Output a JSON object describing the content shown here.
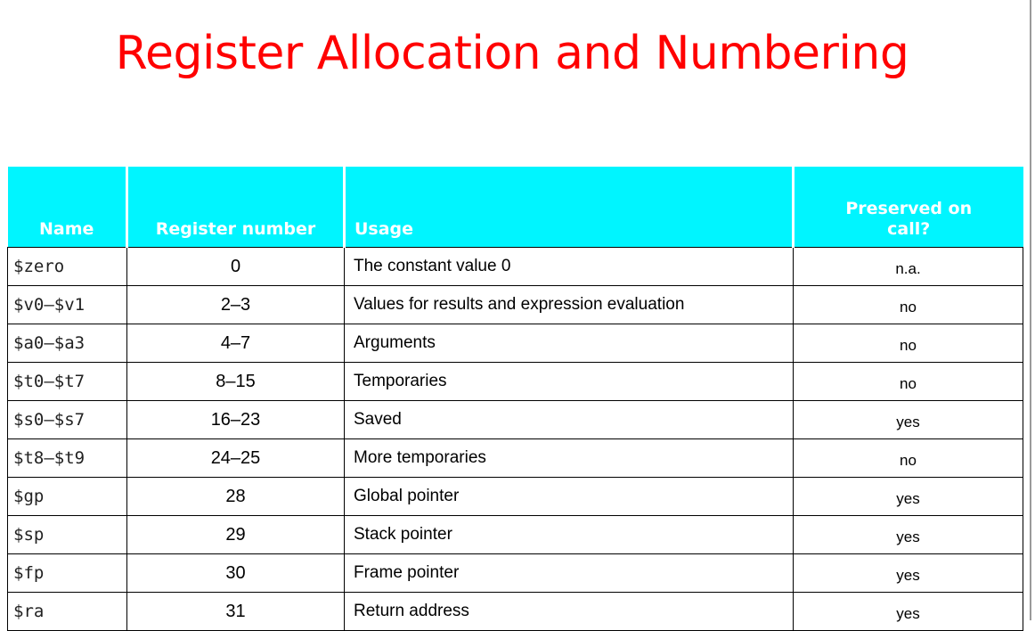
{
  "slide": {
    "title": "Register Allocation and Numbering"
  },
  "table": {
    "headers": {
      "name": "Name",
      "number": "Register number",
      "usage": "Usage",
      "preserved_line1": "Preserved on",
      "preserved_line2": "call?"
    },
    "rows": [
      {
        "name": "$zero",
        "number": "0",
        "usage": "The constant value 0",
        "preserved": "n.a."
      },
      {
        "name": "$v0–$v1",
        "number": "2–3",
        "usage": "Values for results and expression evaluation",
        "preserved": "no"
      },
      {
        "name": "$a0–$a3",
        "number": "4–7",
        "usage": "Arguments",
        "preserved": "no"
      },
      {
        "name": "$t0–$t7",
        "number": "8–15",
        "usage": "Temporaries",
        "preserved": "no"
      },
      {
        "name": "$s0–$s7",
        "number": "16–23",
        "usage": "Saved",
        "preserved": "yes"
      },
      {
        "name": "$t8–$t9",
        "number": "24–25",
        "usage": "More temporaries",
        "preserved": "no"
      },
      {
        "name": "$gp",
        "number": "28",
        "usage": "Global pointer",
        "preserved": "yes"
      },
      {
        "name": "$sp",
        "number": "29",
        "usage": "Stack pointer",
        "preserved": "yes"
      },
      {
        "name": "$fp",
        "number": "30",
        "usage": "Frame pointer",
        "preserved": "yes"
      },
      {
        "name": "$ra",
        "number": "31",
        "usage": "Return address",
        "preserved": "yes"
      }
    ]
  },
  "colors": {
    "title": "#ff0000",
    "header_bg": "#00f5ff",
    "header_text": "#ffffff"
  }
}
